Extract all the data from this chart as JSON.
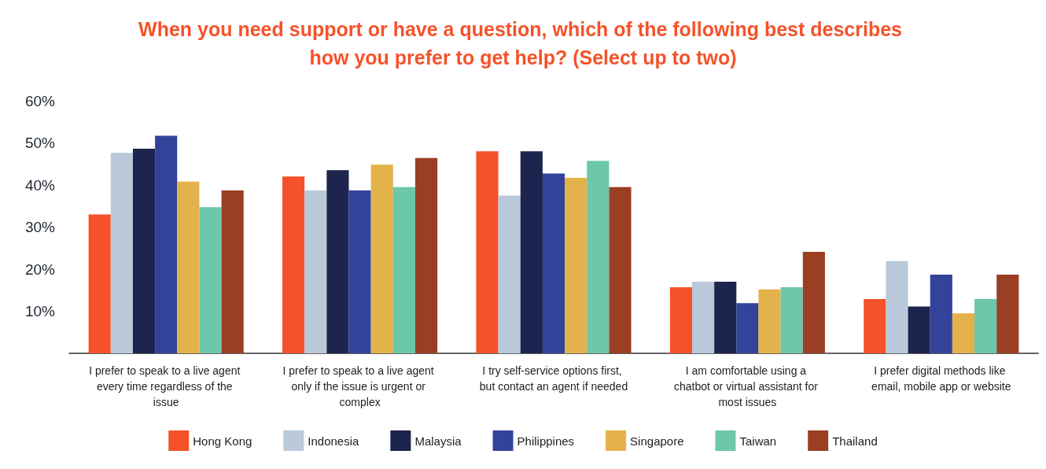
{
  "chart_data": {
    "type": "bar",
    "title": "When you need support or have a question, which of the following best describes how you prefer to get help? (Select up to two)",
    "categories": [
      "I prefer to speak to a live agent every time regardless of the issue",
      "I prefer to speak to a live agent only if the issue is urgent or complex",
      "I try self-service options first, but contact an agent if needed",
      "I am comfortable using a chatbot or virtual assistant for most issues",
      "I prefer digital methods like email, mobile app or website"
    ],
    "series": [
      {
        "name": "Hong Kong",
        "color": "#f5522a",
        "values": [
          33,
          42,
          48,
          15.7,
          12.9
        ]
      },
      {
        "name": "Indonesia",
        "color": "#b9c9d9",
        "values": [
          47.6,
          38.7,
          37.5,
          17,
          21.9
        ]
      },
      {
        "name": "Malaysia",
        "color": "#1d244d",
        "values": [
          48.6,
          43.5,
          48,
          17,
          11.1
        ]
      },
      {
        "name": "Philippines",
        "color": "#33439a",
        "values": [
          51.7,
          38.7,
          42.7,
          11.9,
          18.7
        ]
      },
      {
        "name": "Singapore",
        "color": "#e4b24a",
        "values": [
          40.8,
          44.8,
          41.7,
          15.2,
          9.5
        ]
      },
      {
        "name": "Taiwan",
        "color": "#6dc7aa",
        "values": [
          34.7,
          39.5,
          45.7,
          15.7,
          12.9
        ]
      },
      {
        "name": "Thailand",
        "color": "#9a3f24",
        "values": [
          38.7,
          46.4,
          39.5,
          24.1,
          18.7
        ]
      }
    ],
    "ylim": [
      0,
      60
    ],
    "yticks": [
      {
        "value": 10,
        "label": "10%"
      },
      {
        "value": 20,
        "label": "20%"
      },
      {
        "value": 30,
        "label": "30%"
      },
      {
        "value": 40,
        "label": "40%"
      },
      {
        "value": 50,
        "label": "50%"
      },
      {
        "value": 60,
        "label": "60%"
      }
    ],
    "grid": false,
    "legend": "bottom"
  }
}
